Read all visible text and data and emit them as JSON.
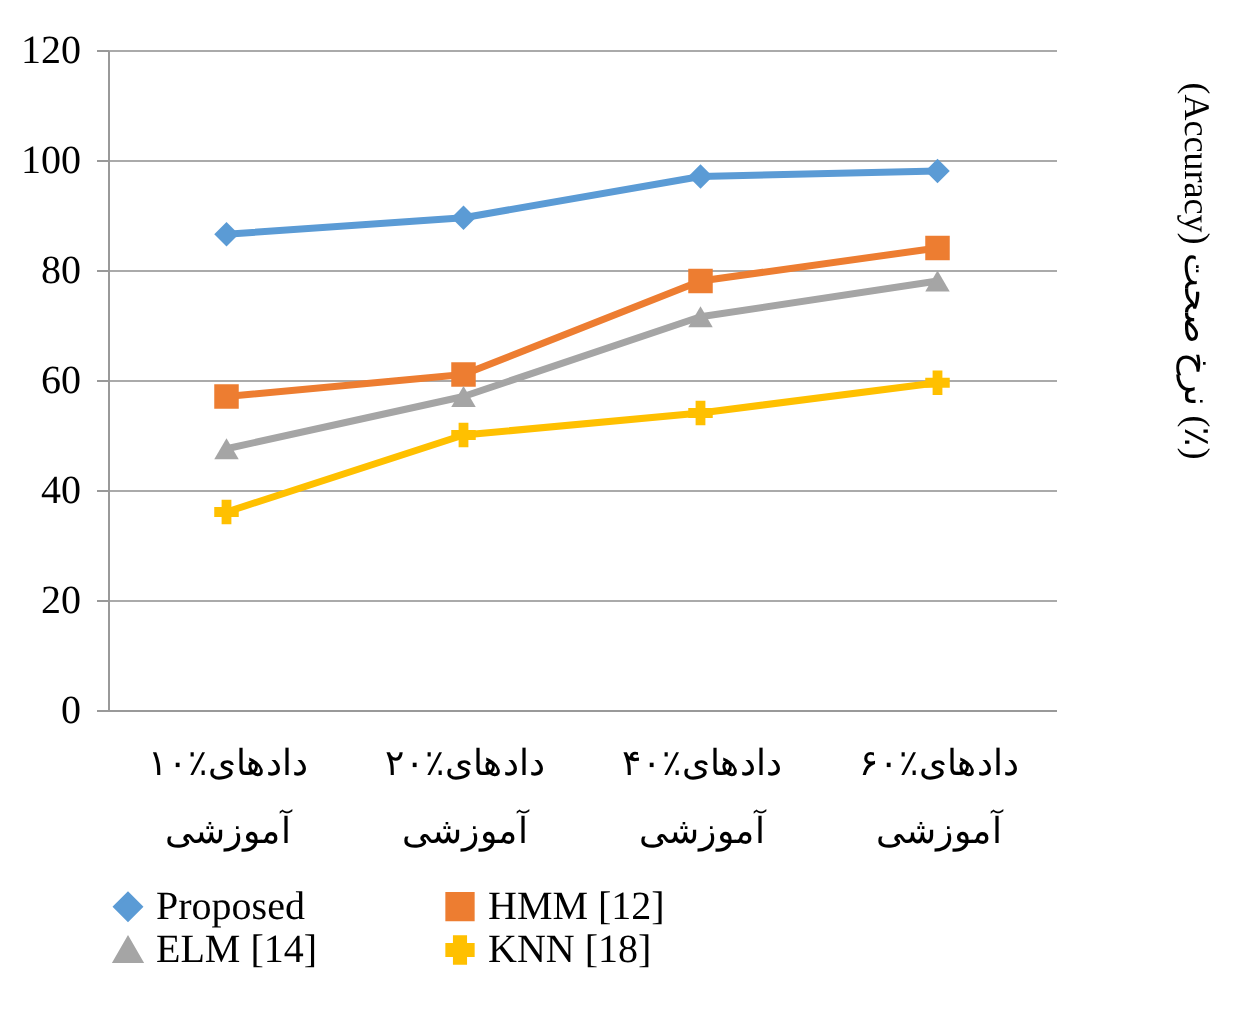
{
  "chart_data": {
    "type": "line",
    "ylabel": "(Accuracy) نرخ صحت (٪)",
    "categories": [
      "۱۰٪دادهای آموزشی",
      "۲۰٪دادهای آموزشی",
      "۴۰٪دادهای آموزشی",
      "۶۰٪دادهای آموزشی"
    ],
    "series": [
      {
        "name": "Proposed",
        "color": "#5b9bd5",
        "marker": "diamond",
        "values": [
          86.5,
          89.5,
          97,
          98
        ]
      },
      {
        "name": "HMM [12]",
        "color": "#ed7d31",
        "marker": "square",
        "values": [
          57,
          61,
          78,
          84
        ]
      },
      {
        "name": "ELM [14]",
        "color": "#a5a5a5",
        "marker": "triangle",
        "values": [
          47.5,
          57,
          71.5,
          78
        ]
      },
      {
        "name": "KNN [18]",
        "color": "#ffc000",
        "marker": "cross",
        "values": [
          36,
          50,
          54,
          59.5
        ]
      }
    ],
    "ylim": [
      0,
      120
    ],
    "yticks": [
      0,
      20,
      40,
      60,
      80,
      100,
      120
    ],
    "grid": "y",
    "legend": "bottom",
    "line_style": "solid"
  }
}
